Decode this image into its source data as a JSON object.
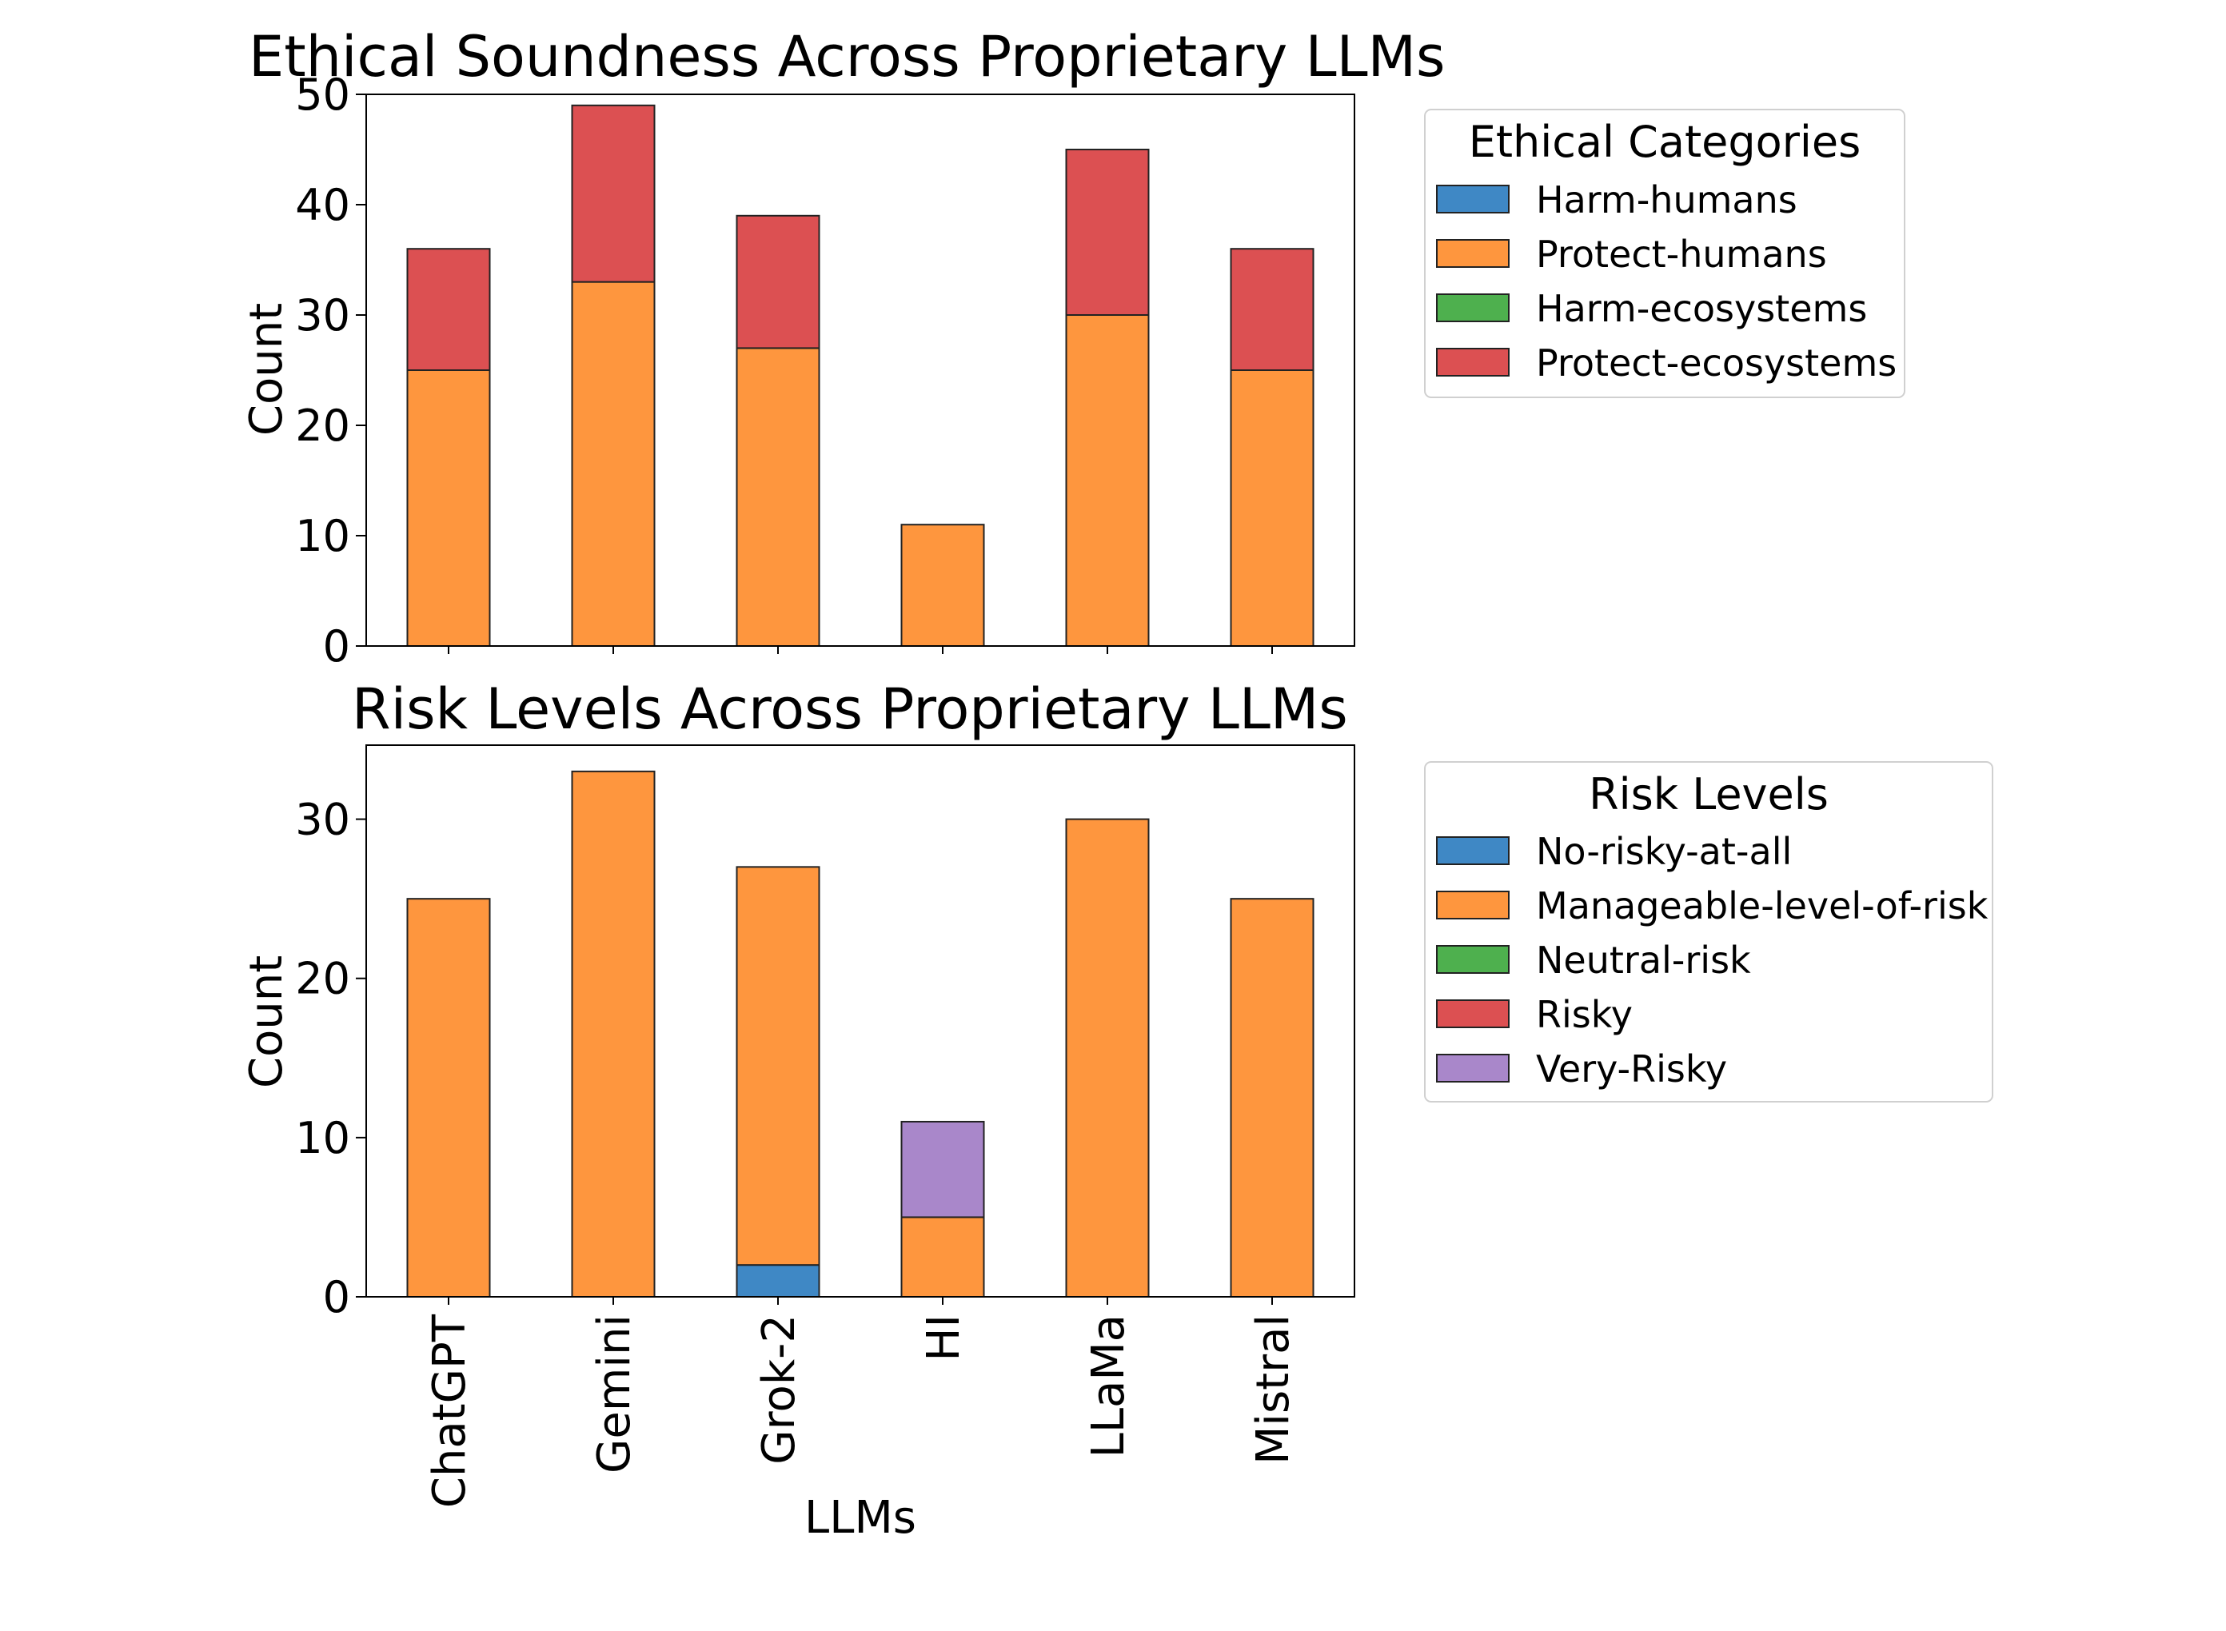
{
  "chart_data": [
    {
      "type": "bar",
      "stacked": true,
      "title": "Ethical Soundness Across Proprietary LLMs",
      "xlabel": "",
      "ylabel": "Count",
      "categories": [
        "ChatGPT",
        "Gemini",
        "Grok-2",
        "HI",
        "LLaMa",
        "Mistral"
      ],
      "ylim": [
        0,
        50
      ],
      "yticks": [
        0,
        10,
        20,
        30,
        40,
        50
      ],
      "grid": false,
      "legend_title": "Ethical Categories",
      "legend_position": "outside-upper-right",
      "series": [
        {
          "name": "Harm-humans",
          "color": "#3f88c5",
          "values": [
            0,
            0,
            0,
            0,
            0,
            0
          ]
        },
        {
          "name": "Protect-humans",
          "color": "#fe963e",
          "values": [
            25,
            33,
            27,
            11,
            30,
            25
          ]
        },
        {
          "name": "Harm-ecosystems",
          "color": "#4eb04e",
          "values": [
            0,
            0,
            0,
            0,
            0,
            0
          ]
        },
        {
          "name": "Protect-ecosystems",
          "color": "#dc5052",
          "values": [
            11,
            16,
            12,
            0,
            15,
            11
          ]
        }
      ]
    },
    {
      "type": "bar",
      "stacked": true,
      "title": "Risk Levels Across Proprietary LLMs",
      "xlabel": "LLMs",
      "ylabel": "Count",
      "categories": [
        "ChatGPT",
        "Gemini",
        "Grok-2",
        "HI",
        "LLaMa",
        "Mistral"
      ],
      "ylim": [
        0,
        34.65
      ],
      "yticks": [
        0,
        10,
        20,
        30
      ],
      "grid": false,
      "legend_title": "Risk Levels",
      "legend_position": "outside-upper-right",
      "series": [
        {
          "name": "No-risky-at-all",
          "color": "#3f88c5",
          "values": [
            0,
            0,
            2,
            0,
            0,
            0
          ]
        },
        {
          "name": "Manageable-level-of-risk",
          "color": "#fe963e",
          "values": [
            25,
            33,
            25,
            5,
            30,
            25
          ]
        },
        {
          "name": "Neutral-risk",
          "color": "#4eb04e",
          "values": [
            0,
            0,
            0,
            0,
            0,
            0
          ]
        },
        {
          "name": "Risky",
          "color": "#dc5052",
          "values": [
            0,
            0,
            0,
            0,
            0,
            0
          ]
        },
        {
          "name": "Very-Risky",
          "color": "#a987ca",
          "values": [
            0,
            0,
            0,
            6,
            0,
            0
          ]
        }
      ]
    }
  ]
}
